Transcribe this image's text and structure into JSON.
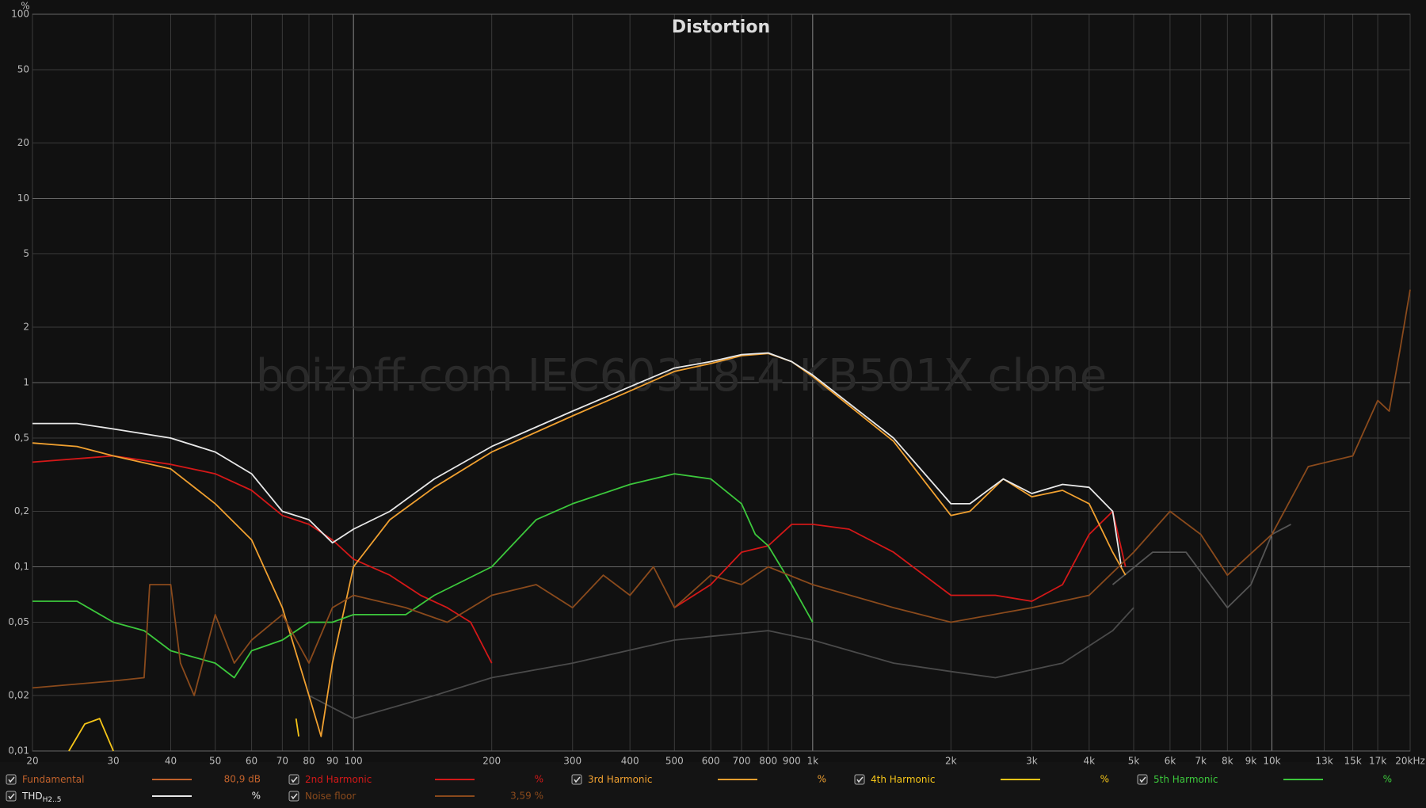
{
  "chart_data": {
    "type": "line",
    "title": "Distortion",
    "y_unit": "%",
    "watermark": "boizoff.com IEC60318-4 KB501X clone",
    "log_x": true,
    "log_y": true,
    "grid": true,
    "xlim": [
      20,
      20000
    ],
    "ylim": [
      0.01,
      100
    ],
    "xticks": [
      20,
      30,
      40,
      50,
      60,
      70,
      80,
      90,
      100,
      200,
      300,
      400,
      500,
      600,
      700,
      800,
      900,
      {
        "value": 1000,
        "label": "1k"
      },
      {
        "value": 2000,
        "label": "2k"
      },
      {
        "value": 3000,
        "label": "3k"
      },
      {
        "value": 4000,
        "label": "4k"
      },
      {
        "value": 5000,
        "label": "5k"
      },
      {
        "value": 6000,
        "label": "6k"
      },
      {
        "value": 7000,
        "label": "7k"
      },
      {
        "value": 8000,
        "label": "8k"
      },
      {
        "value": 9000,
        "label": "9k"
      },
      {
        "value": 10000,
        "label": "10k"
      },
      {
        "value": 13000,
        "label": "13k"
      },
      {
        "value": 15000,
        "label": "15k"
      },
      {
        "value": 17000,
        "label": "17k"
      },
      {
        "value": 20000,
        "label": "20kHz"
      }
    ],
    "yticks": [
      {
        "value": 0.01,
        "label": "0,01"
      },
      {
        "value": 0.02,
        "label": "0,02"
      },
      {
        "value": 0.05,
        "label": "0,05"
      },
      {
        "value": 0.1,
        "label": "0,1"
      },
      {
        "value": 0.2,
        "label": "0,2"
      },
      {
        "value": 0.5,
        "label": "0,5"
      },
      1,
      2,
      5,
      10,
      20,
      50,
      100
    ],
    "fundamental": {
      "name": "Fundamental",
      "color": "#c0612b",
      "readout": "80,9 dB"
    },
    "series": [
      {
        "name": "2nd Harmonic",
        "color": "#d41818",
        "readout": "%",
        "x": [
          20,
          30,
          40,
          50,
          60,
          70,
          80,
          90,
          100,
          120,
          140,
          160,
          180,
          200,
          300,
          500,
          600,
          700,
          800,
          900,
          1000,
          1200,
          1500,
          2000,
          2500,
          3000,
          3500,
          4000,
          4500,
          4800
        ],
        "values": [
          0.37,
          0.4,
          0.36,
          0.32,
          0.26,
          0.19,
          0.17,
          0.14,
          0.11,
          0.09,
          0.07,
          0.06,
          0.05,
          0.03,
          null,
          0.06,
          0.08,
          0.12,
          0.13,
          0.17,
          0.17,
          0.16,
          0.12,
          0.07,
          0.07,
          0.065,
          0.08,
          0.15,
          0.2,
          0.1
        ]
      },
      {
        "name": "3rd Harmonic",
        "color": "#f0a030",
        "readout": "%",
        "x": [
          20,
          25,
          30,
          40,
          50,
          60,
          70,
          80,
          85,
          90,
          100,
          120,
          150,
          200,
          300,
          400,
          500,
          600,
          700,
          800,
          900,
          1000,
          1500,
          2000,
          2200,
          2600,
          3000,
          3500,
          4000,
          4500,
          4800
        ],
        "values": [
          0.47,
          0.45,
          0.4,
          0.34,
          0.22,
          0.14,
          0.06,
          0.02,
          0.012,
          0.03,
          0.1,
          0.18,
          0.27,
          0.42,
          0.66,
          0.9,
          1.15,
          1.27,
          1.4,
          1.44,
          1.3,
          1.08,
          0.48,
          0.19,
          0.2,
          0.3,
          0.24,
          0.26,
          0.22,
          0.12,
          0.09
        ]
      },
      {
        "name": "4th Harmonic",
        "color": "#f5c518",
        "readout": "%",
        "x": [
          24,
          26,
          28,
          30,
          50,
          75,
          76
        ],
        "values": [
          0.01,
          0.014,
          0.015,
          0.01,
          null,
          0.015,
          0.012
        ]
      },
      {
        "name": "5th Harmonic",
        "color": "#3cc83c",
        "readout": "%",
        "x": [
          20,
          25,
          30,
          35,
          40,
          50,
          55,
          60,
          70,
          80,
          90,
          100,
          130,
          150,
          200,
          250,
          300,
          400,
          500,
          600,
          700,
          750,
          800,
          900,
          1000
        ],
        "values": [
          0.065,
          0.065,
          0.05,
          0.045,
          0.035,
          0.03,
          0.025,
          0.035,
          0.04,
          0.05,
          0.05,
          0.055,
          0.055,
          0.07,
          0.1,
          0.18,
          0.22,
          0.28,
          0.32,
          0.3,
          0.22,
          0.15,
          0.13,
          0.08,
          0.05
        ]
      },
      {
        "name": "THD",
        "subscript": "H2..5",
        "color": "#e8e8e8",
        "readout": "%",
        "x": [
          20,
          25,
          30,
          40,
          50,
          60,
          70,
          80,
          90,
          100,
          120,
          150,
          200,
          300,
          400,
          500,
          600,
          700,
          800,
          900,
          1000,
          1500,
          2000,
          2200,
          2600,
          3000,
          3500,
          4000,
          4500,
          4700
        ],
        "values": [
          0.6,
          0.6,
          0.56,
          0.5,
          0.42,
          0.32,
          0.2,
          0.18,
          0.135,
          0.16,
          0.2,
          0.3,
          0.45,
          0.7,
          0.95,
          1.2,
          1.3,
          1.42,
          1.45,
          1.3,
          1.1,
          0.5,
          0.22,
          0.22,
          0.3,
          0.25,
          0.28,
          0.27,
          0.2,
          0.1
        ]
      },
      {
        "name": "Noise floor",
        "color": "#8a4a1c",
        "readout": "3,59 %",
        "x": [
          20,
          30,
          35,
          36,
          40,
          42,
          45,
          50,
          55,
          60,
          70,
          80,
          90,
          100,
          130,
          160,
          200,
          250,
          300,
          350,
          400,
          450,
          500,
          600,
          700,
          800,
          1000,
          1500,
          2000,
          3000,
          4000,
          5000,
          6000,
          7000,
          8000,
          10000,
          12000,
          15000,
          17000,
          18000,
          19000,
          20000
        ],
        "values": [
          0.022,
          0.024,
          0.025,
          0.08,
          0.08,
          0.03,
          0.02,
          0.055,
          0.03,
          0.04,
          0.055,
          0.03,
          0.06,
          0.07,
          0.06,
          0.05,
          0.07,
          0.08,
          0.06,
          0.09,
          0.07,
          0.1,
          0.06,
          0.09,
          0.08,
          0.1,
          0.08,
          0.06,
          0.05,
          0.06,
          0.07,
          0.12,
          0.2,
          0.15,
          0.09,
          0.15,
          0.35,
          0.4,
          0.8,
          0.7,
          1.5,
          3.2
        ]
      },
      {
        "color": "#4a4a4a",
        "x": [
          80,
          100,
          150,
          200,
          300,
          500,
          800,
          1000,
          1500,
          2000,
          2500,
          3500,
          4500,
          5000
        ],
        "values": [
          0.02,
          0.015,
          0.02,
          0.025,
          0.03,
          0.04,
          0.045,
          0.04,
          0.03,
          0.027,
          0.025,
          0.03,
          0.045,
          0.06
        ]
      },
      {
        "color": "#555555",
        "x": [
          4500,
          5500,
          6500,
          8000,
          9000,
          10000,
          11000
        ],
        "values": [
          0.08,
          0.12,
          0.12,
          0.06,
          0.08,
          0.15,
          0.17
        ]
      }
    ]
  }
}
